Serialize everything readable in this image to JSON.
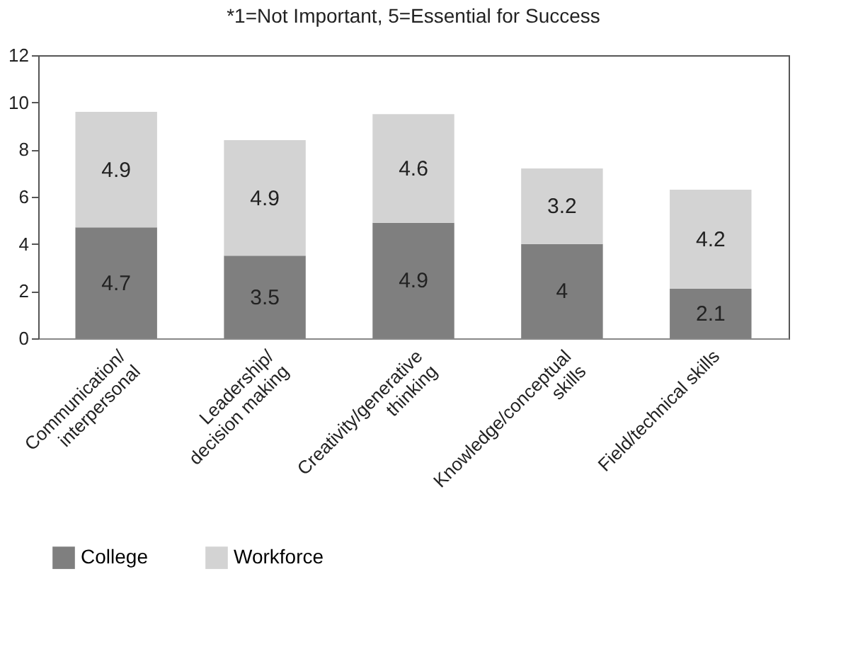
{
  "chart_data": {
    "type": "bar",
    "title": "*1=Not Important, 5=Essential for Success",
    "categories": [
      "Communication/\ninterpersonal",
      "Leadership/\ndecision making",
      "Creativity/generative\nthinking",
      "Knowledge/conceptual\nskills",
      "Field/technical skills"
    ],
    "series": [
      {
        "name": "College",
        "color": "#7f7f7f",
        "values": [
          4.7,
          3.5,
          4.9,
          4,
          2.1
        ]
      },
      {
        "name": "Workforce",
        "color": "#d3d3d3",
        "values": [
          4.9,
          4.9,
          4.6,
          3.2,
          4.2
        ]
      }
    ],
    "stacked": true,
    "ylim": [
      0,
      12
    ],
    "yticks": [
      0,
      2,
      4,
      6,
      8,
      10,
      12
    ],
    "grid": false,
    "legend": "bottom",
    "data_labels": true
  }
}
